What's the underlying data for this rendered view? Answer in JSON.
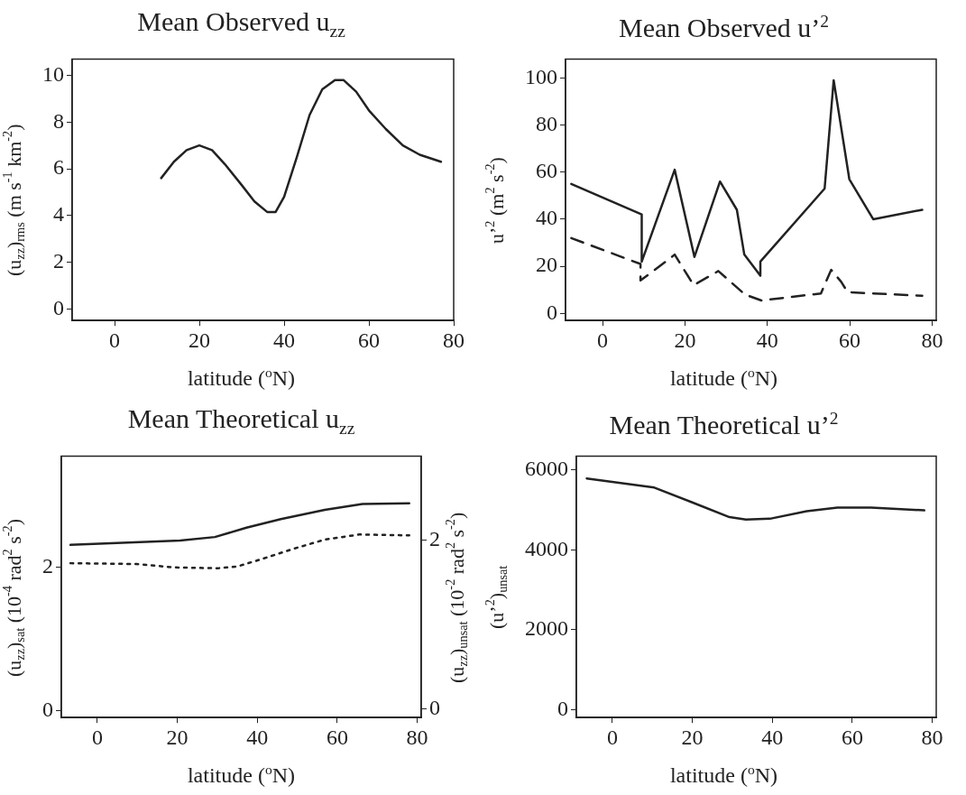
{
  "chart_data": [
    {
      "type": "line",
      "title": "Mean Observed u$_{zz}$",
      "xlabel": "latitude ($^{o}$N)",
      "ylabel": "(u$_{zz}$)$_{rms}$ (m s$^{-1}$ km$^{-2}$)",
      "xlim": [
        -10,
        80
      ],
      "xticks": [
        0,
        20,
        40,
        60,
        80
      ],
      "ylim": [
        -0.5,
        10.7
      ],
      "yticks": [
        0,
        2,
        4,
        6,
        8,
        10
      ],
      "series": [
        {
          "color": "#222222",
          "x": [
            11,
            14,
            17,
            20,
            23,
            26,
            30,
            33,
            36,
            38,
            40,
            43,
            46,
            49,
            52,
            54,
            57,
            60,
            64,
            68,
            72,
            77
          ],
          "values": [
            5.6,
            6.3,
            6.8,
            7.0,
            6.8,
            6.2,
            5.3,
            4.6,
            4.15,
            4.15,
            4.8,
            6.5,
            8.3,
            9.4,
            9.8,
            9.8,
            9.3,
            8.5,
            7.7,
            7.0,
            6.6,
            6.3
          ]
        }
      ]
    },
    {
      "type": "line",
      "title": "Mean Observed u’$^{2}$",
      "xlabel": "latitude ($^{o}$N)",
      "ylabel": "u’$^{2}$ (m$^{2}$ s$^{-2}$)",
      "xlim": [
        -9,
        81
      ],
      "xticks": [
        0,
        20,
        40,
        60,
        80
      ],
      "ylim": [
        -3,
        108
      ],
      "yticks": [
        0,
        20,
        40,
        60,
        80,
        100
      ],
      "series": [
        {
          "color": "#222222",
          "x": [
            -7.6,
            9.5,
            9.5,
            17.5,
            22.3,
            28.5,
            32.6,
            34.4,
            38.3,
            38.3,
            53.9,
            56.1,
            59.9,
            65.7,
            77.6
          ],
          "values": [
            55,
            42,
            22,
            61,
            24,
            56,
            44,
            25,
            16,
            22,
            53,
            99,
            57,
            40,
            44
          ]
        },
        {
          "color": "#222222",
          "line_style": "dashed",
          "x": [
            -7.6,
            9.2,
            9.2,
            16.1,
            17.5,
            22.1,
            28.1,
            34.6,
            38.6,
            53,
            55.5,
            57.9,
            59.5,
            77.6
          ],
          "values": [
            32,
            21,
            14,
            23,
            25,
            12,
            18,
            8,
            5.5,
            8.5,
            18.5,
            13.5,
            9,
            7.5
          ]
        }
      ]
    },
    {
      "type": "line",
      "title": "Mean Theoretical u$_{zz}$",
      "xlabel": "latitude ($^{o}$N)",
      "ylabel": "(u$_{zz}$)$_{sat}$ (10$^{-4}$ rad$^{2}$ s$^{-2}$)",
      "y2label": "(u$_{zz}$)$_{unsat}$ (10$^{-2}$ rad$^{2}$ s$^{-2}$)",
      "xlim": [
        -9,
        81
      ],
      "xticks": [
        0,
        20,
        40,
        60,
        80
      ],
      "ylim": [
        -0.1,
        3.55
      ],
      "yticks": [
        0,
        2
      ],
      "y2lim": [
        -0.1,
        3.0
      ],
      "y2ticks": [
        0,
        2
      ],
      "series": [
        {
          "color": "#222222",
          "x": [
            -6.7,
            20.7,
            29.4,
            37.3,
            45.9,
            56.9,
            66.3,
            78
          ],
          "values": [
            2.31,
            2.37,
            2.42,
            2.55,
            2.67,
            2.8,
            2.88,
            2.89
          ]
        },
        {
          "color": "#222222",
          "line_style": "dotted",
          "axis": "y2",
          "x": [
            -6.7,
            9.8,
            19.2,
            30.2,
            34.9,
            41.2,
            49,
            56.9,
            65.5,
            78
          ],
          "values": [
            1.73,
            1.72,
            1.68,
            1.67,
            1.69,
            1.78,
            1.9,
            2.01,
            2.07,
            2.06
          ]
        }
      ]
    },
    {
      "type": "line",
      "title": "Mean Theoretical u’$^{2}$",
      "xlabel": "latitude ($^{o}$N)",
      "ylabel": "(u’$^{2}$)$_{unsat}$",
      "xlim": [
        -9,
        81
      ],
      "xticks": [
        0,
        20,
        40,
        60,
        80
      ],
      "ylim": [
        -200,
        6350
      ],
      "yticks": [
        0,
        2000,
        4000,
        6000
      ],
      "series": [
        {
          "color": "#222222",
          "x": [
            -6.4,
            10.5,
            19.7,
            29.3,
            33.4,
            39.4,
            48.6,
            56.3,
            64.7,
            78
          ],
          "values": [
            5790,
            5560,
            5200,
            4820,
            4760,
            4780,
            4970,
            5060,
            5060,
            4990
          ]
        }
      ]
    }
  ]
}
